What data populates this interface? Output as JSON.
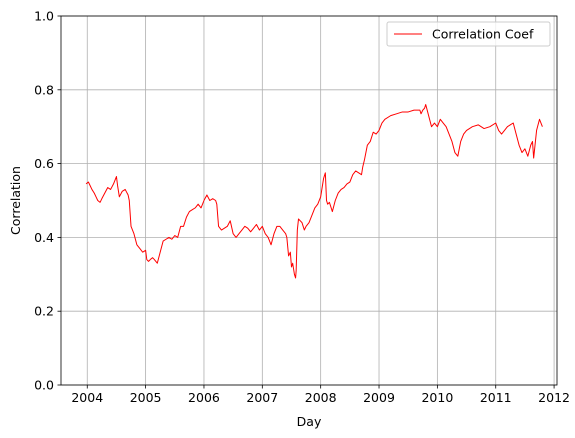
{
  "chart_data": {
    "type": "line",
    "title": "",
    "xlabel": "Day",
    "ylabel": "Correlation",
    "xlim": [
      2003.55,
      2012.05
    ],
    "ylim": [
      0.0,
      1.0
    ],
    "x_ticks": [
      2004,
      2005,
      2006,
      2007,
      2008,
      2009,
      2010,
      2011,
      2012
    ],
    "x_tick_labels": [
      "2004",
      "2005",
      "2006",
      "2007",
      "2008",
      "2009",
      "2010",
      "2011",
      "2012"
    ],
    "y_ticks": [
      0.0,
      0.2,
      0.4,
      0.6,
      0.8,
      1.0
    ],
    "y_tick_labels": [
      "0.0",
      "0.2",
      "0.4",
      "0.6",
      "0.8",
      "1.0"
    ],
    "grid": true,
    "legend": {
      "placement": "top-right",
      "entries": [
        "Correlation Coef"
      ]
    },
    "series": [
      {
        "name": "Correlation Coef",
        "color": "#ff0000",
        "x": [
          2003.98,
          2004.02,
          2004.05,
          2004.08,
          2004.12,
          2004.15,
          2004.18,
          2004.22,
          2004.25,
          2004.3,
          2004.35,
          2004.4,
          2004.45,
          2004.5,
          2004.52,
          2004.55,
          2004.6,
          2004.65,
          2004.7,
          2004.72,
          2004.75,
          2004.8,
          2004.85,
          2004.9,
          2004.95,
          2005.0,
          2005.02,
          2005.05,
          2005.08,
          2005.12,
          2005.15,
          2005.2,
          2005.25,
          2005.3,
          2005.35,
          2005.4,
          2005.45,
          2005.5,
          2005.55,
          2005.6,
          2005.65,
          2005.7,
          2005.75,
          2005.8,
          2005.85,
          2005.9,
          2005.95,
          2006.0,
          2006.05,
          2006.1,
          2006.15,
          2006.2,
          2006.22,
          2006.25,
          2006.3,
          2006.35,
          2006.4,
          2006.45,
          2006.5,
          2006.55,
          2006.6,
          2006.65,
          2006.7,
          2006.75,
          2006.8,
          2006.85,
          2006.9,
          2006.95,
          2007.0,
          2007.05,
          2007.1,
          2007.15,
          2007.2,
          2007.25,
          2007.3,
          2007.35,
          2007.4,
          2007.42,
          2007.45,
          2007.48,
          2007.5,
          2007.52,
          2007.55,
          2007.57,
          2007.58,
          2007.6,
          2007.62,
          2007.65,
          2007.68,
          2007.7,
          2007.72,
          2007.75,
          2007.8,
          2007.85,
          2007.9,
          2007.95,
          2008.0,
          2008.03,
          2008.05,
          2008.08,
          2008.1,
          2008.12,
          2008.15,
          2008.18,
          2008.2,
          2008.25,
          2008.3,
          2008.35,
          2008.4,
          2008.45,
          2008.5,
          2008.55,
          2008.6,
          2008.65,
          2008.7,
          2008.72,
          2008.75,
          2008.8,
          2008.85,
          2008.9,
          2008.95,
          2009.0,
          2009.05,
          2009.1,
          2009.2,
          2009.3,
          2009.4,
          2009.5,
          2009.6,
          2009.7,
          2009.72,
          2009.75,
          2009.78,
          2009.8,
          2009.85,
          2009.9,
          2009.95,
          2010.0,
          2010.05,
          2010.1,
          2010.15,
          2010.2,
          2010.25,
          2010.3,
          2010.35,
          2010.4,
          2010.45,
          2010.5,
          2010.55,
          2010.6,
          2010.7,
          2010.8,
          2010.9,
          2011.0,
          2011.05,
          2011.1,
          2011.15,
          2011.2,
          2011.25,
          2011.3,
          2011.35,
          2011.4,
          2011.45,
          2011.5,
          2011.55,
          2011.6,
          2011.63,
          2011.65,
          2011.7,
          2011.75,
          2011.8
        ],
        "y": [
          0.545,
          0.55,
          0.54,
          0.53,
          0.52,
          0.51,
          0.5,
          0.495,
          0.505,
          0.52,
          0.535,
          0.53,
          0.545,
          0.565,
          0.54,
          0.51,
          0.525,
          0.53,
          0.515,
          0.5,
          0.43,
          0.41,
          0.38,
          0.37,
          0.36,
          0.365,
          0.34,
          0.335,
          0.34,
          0.345,
          0.34,
          0.33,
          0.36,
          0.39,
          0.395,
          0.4,
          0.395,
          0.405,
          0.4,
          0.43,
          0.43,
          0.455,
          0.47,
          0.475,
          0.48,
          0.49,
          0.48,
          0.5,
          0.515,
          0.5,
          0.505,
          0.5,
          0.49,
          0.43,
          0.42,
          0.425,
          0.43,
          0.445,
          0.41,
          0.4,
          0.41,
          0.42,
          0.43,
          0.425,
          0.415,
          0.425,
          0.435,
          0.42,
          0.43,
          0.41,
          0.4,
          0.38,
          0.41,
          0.43,
          0.43,
          0.42,
          0.41,
          0.4,
          0.35,
          0.36,
          0.32,
          0.33,
          0.3,
          0.29,
          0.31,
          0.42,
          0.45,
          0.445,
          0.44,
          0.43,
          0.42,
          0.43,
          0.44,
          0.46,
          0.48,
          0.49,
          0.51,
          0.54,
          0.56,
          0.575,
          0.5,
          0.49,
          0.495,
          0.48,
          0.47,
          0.5,
          0.52,
          0.53,
          0.535,
          0.545,
          0.55,
          0.57,
          0.58,
          0.575,
          0.57,
          0.59,
          0.61,
          0.65,
          0.66,
          0.685,
          0.68,
          0.69,
          0.71,
          0.72,
          0.73,
          0.735,
          0.74,
          0.74,
          0.745,
          0.745,
          0.735,
          0.745,
          0.75,
          0.76,
          0.73,
          0.7,
          0.71,
          0.7,
          0.72,
          0.71,
          0.7,
          0.68,
          0.66,
          0.63,
          0.62,
          0.66,
          0.68,
          0.69,
          0.695,
          0.7,
          0.705,
          0.695,
          0.7,
          0.71,
          0.69,
          0.68,
          0.69,
          0.7,
          0.705,
          0.71,
          0.68,
          0.65,
          0.63,
          0.64,
          0.62,
          0.65,
          0.66,
          0.615,
          0.69,
          0.72,
          0.7
        ]
      }
    ]
  }
}
